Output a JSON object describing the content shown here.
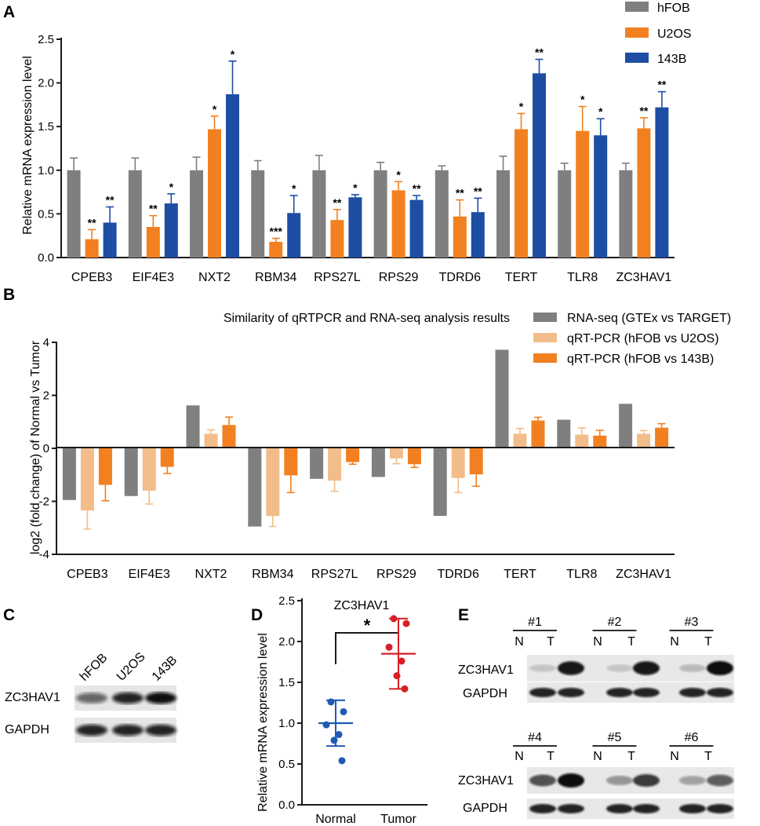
{
  "colors": {
    "gray": "#7f7f7f",
    "orange": "#f28020",
    "blue": "#1d4ea3",
    "light_orange": "#f2bd8a",
    "red": "#d81f26",
    "dot_blue": "#1f5bb5"
  },
  "panel_labels": {
    "a": "A",
    "b": "B",
    "c": "C",
    "d": "D",
    "e": "E"
  },
  "chart_data": [
    {
      "panel": "A",
      "type": "bar",
      "title": "",
      "xlabel": "",
      "ylabel": "Relative mRNA expression level",
      "ylim": [
        0,
        2.5
      ],
      "yticks": [
        "0.0",
        "0.5",
        "1.0",
        "1.5",
        "2.0",
        "2.5"
      ],
      "categories": [
        "CPEB3",
        "EIF4E3",
        "NXT2",
        "RBM34",
        "RPS27L",
        "RPS29",
        "TDRD6",
        "TERT",
        "TLR8",
        "ZC3HAV1"
      ],
      "legend_position": "top-right",
      "series": [
        {
          "name": "hFOB",
          "color": "#7f7f7f",
          "values": [
            1.0,
            1.0,
            1.0,
            1.0,
            1.0,
            1.0,
            1.0,
            1.0,
            1.0,
            1.0
          ],
          "errors": [
            0.14,
            0.14,
            0.15,
            0.11,
            0.17,
            0.09,
            0.05,
            0.16,
            0.08,
            0.08
          ],
          "sig": [
            "",
            "",
            "",
            "",
            "",
            "",
            "",
            "",
            "",
            ""
          ]
        },
        {
          "name": "U2OS",
          "color": "#f28020",
          "values": [
            0.21,
            0.35,
            1.47,
            0.18,
            0.43,
            0.77,
            0.47,
            1.47,
            1.45,
            1.48
          ],
          "errors": [
            0.11,
            0.13,
            0.15,
            0.04,
            0.12,
            0.1,
            0.19,
            0.18,
            0.28,
            0.12
          ],
          "sig": [
            "**",
            "**",
            "*",
            "***",
            "**",
            "*",
            "**",
            "*",
            "*",
            "**"
          ]
        },
        {
          "name": "143B",
          "color": "#1d4ea3",
          "values": [
            0.4,
            0.62,
            1.87,
            0.51,
            0.69,
            0.66,
            0.52,
            2.11,
            1.4,
            1.72
          ],
          "errors": [
            0.18,
            0.11,
            0.38,
            0.2,
            0.03,
            0.05,
            0.16,
            0.16,
            0.19,
            0.18
          ],
          "sig": [
            "**",
            "*",
            "*",
            "*",
            "*",
            "**",
            "**",
            "**",
            "*",
            "**"
          ]
        }
      ]
    },
    {
      "panel": "B",
      "type": "bar",
      "title": "Similarity of qRTPCR and RNA-seq analysis results",
      "xlabel": "",
      "ylabel": "log2 (fold change) of Normal vs Tumor",
      "ylim": [
        -4,
        4
      ],
      "yticks": [
        "-4",
        "-2",
        "0",
        "2",
        "4"
      ],
      "categories": [
        "CPEB3",
        "EIF4E3",
        "NXT2",
        "RBM34",
        "RPS27L",
        "RPS29",
        "TDRD6",
        "TERT",
        "TLR8",
        "ZC3HAV1"
      ],
      "legend_position": "top-right",
      "series": [
        {
          "name": "RNA-seq (GTEx vs TARGET)",
          "color": "#7f7f7f",
          "values": [
            -1.95,
            -1.8,
            1.62,
            -2.95,
            -1.15,
            -1.08,
            -2.55,
            3.72,
            1.08,
            1.68
          ],
          "errors": [
            0,
            0,
            0,
            0,
            0,
            0,
            0,
            0,
            0,
            0
          ]
        },
        {
          "name": "qRT-PCR (hFOB vs U2OS)",
          "color": "#f2bd8a",
          "values": [
            -2.35,
            -1.6,
            0.55,
            -2.55,
            -1.22,
            -0.38,
            -1.12,
            0.55,
            0.52,
            0.55
          ],
          "errors": [
            0.7,
            0.5,
            0.15,
            0.4,
            0.4,
            0.2,
            0.55,
            0.2,
            0.25,
            0.12
          ]
        },
        {
          "name": "qRT-PCR (hFOB vs 143B)",
          "color": "#f28020",
          "values": [
            -1.38,
            -0.7,
            0.88,
            -1.02,
            -0.52,
            -0.6,
            -0.98,
            1.05,
            0.48,
            0.78
          ],
          "errors": [
            0.6,
            0.25,
            0.3,
            0.65,
            0.08,
            0.12,
            0.45,
            0.12,
            0.2,
            0.15
          ]
        }
      ]
    },
    {
      "panel": "D",
      "type": "scatter",
      "title": "ZC3HAV1",
      "xlabel": "",
      "ylabel": "Relative mRNA expression level",
      "ylim": [
        0,
        2.5
      ],
      "yticks": [
        "0.0",
        "0.5",
        "1.0",
        "1.5",
        "2.0",
        "2.5"
      ],
      "categories": [
        "Normal",
        "Tumor"
      ],
      "series": [
        {
          "name": "Normal",
          "color": "#1f5bb5",
          "points": [
            1.26,
            1.14,
            0.98,
            0.86,
            0.79,
            0.54
          ],
          "mean": 1.0,
          "sd": 0.28
        },
        {
          "name": "Tumor",
          "color": "#d81f26",
          "points": [
            2.28,
            2.22,
            1.93,
            1.76,
            1.58,
            1.42
          ],
          "mean": 1.85,
          "sd": 0.43
        }
      ],
      "significance": "*"
    }
  ],
  "blot_c": {
    "columns": [
      "hFOB",
      "U2OS",
      "143B"
    ],
    "rows": [
      "ZC3HAV1",
      "GAPDH"
    ],
    "intensity": {
      "ZC3HAV1": [
        0.6,
        0.9,
        1.0
      ],
      "GAPDH": [
        0.9,
        0.9,
        0.9
      ]
    }
  },
  "blot_e": {
    "rows": [
      "ZC3HAV1",
      "GAPDH"
    ],
    "groups_top": [
      "#1",
      "#2",
      "#3"
    ],
    "groups_bottom": [
      "#4",
      "#5",
      "#6"
    ],
    "lanes": [
      "N",
      "T"
    ],
    "intensity_top": {
      "ZC3HAV1": [
        0.15,
        0.95,
        0.15,
        0.95,
        0.2,
        1.0
      ],
      "GAPDH": [
        0.9,
        0.9,
        0.9,
        0.9,
        0.9,
        0.9
      ]
    },
    "intensity_bottom": {
      "ZC3HAV1": [
        0.7,
        1.0,
        0.4,
        0.8,
        0.35,
        0.65
      ],
      "GAPDH": [
        0.9,
        0.9,
        0.9,
        0.9,
        0.9,
        0.9
      ]
    }
  }
}
